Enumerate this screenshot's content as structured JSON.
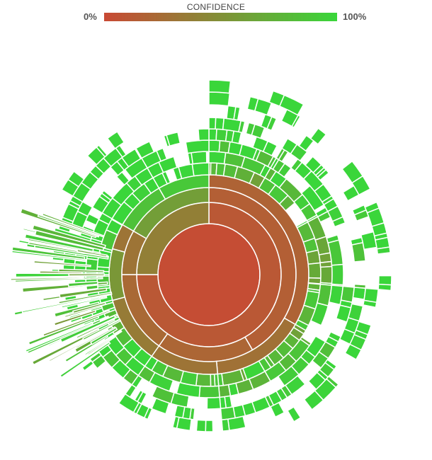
{
  "legend": {
    "title": "CONFIDENCE",
    "min_label": "0%",
    "max_label": "100%",
    "low_color": "#c84a34",
    "high_color": "#3ad63a"
  },
  "chart_data": {
    "type": "sunburst",
    "color_encoding": "confidence (0–100%), red = 0%, green = 100%",
    "rings": [
      {
        "depth": 1,
        "segments": [
          {
            "start_deg": 0,
            "end_deg": 360,
            "confidence": 0.02
          }
        ]
      },
      {
        "depth": 2,
        "segments": [
          {
            "start_deg": 0,
            "end_deg": 270,
            "confidence": 0.1
          },
          {
            "start_deg": 270,
            "end_deg": 360,
            "confidence": 0.38
          }
        ]
      },
      {
        "depth": 3,
        "segments": [
          {
            "start_deg": 0,
            "end_deg": 150,
            "confidence": 0.15
          },
          {
            "start_deg": 150,
            "end_deg": 215,
            "confidence": 0.2
          },
          {
            "start_deg": 215,
            "end_deg": 270,
            "confidence": 0.22
          },
          {
            "start_deg": 270,
            "end_deg": 300,
            "confidence": 0.3
          },
          {
            "start_deg": 300,
            "end_deg": 360,
            "confidence": 0.6
          }
        ]
      },
      {
        "depth": 4,
        "segments": [
          {
            "start_deg": 0,
            "end_deg": 120,
            "confidence": 0.18
          },
          {
            "start_deg": 120,
            "end_deg": 175,
            "confidence": 0.28
          },
          {
            "start_deg": 175,
            "end_deg": 215,
            "confidence": 0.3
          },
          {
            "start_deg": 215,
            "end_deg": 255,
            "confidence": 0.35
          },
          {
            "start_deg": 255,
            "end_deg": 285,
            "confidence": 0.55
          },
          {
            "start_deg": 285,
            "end_deg": 300,
            "confidence": 0.3
          },
          {
            "start_deg": 300,
            "end_deg": 330,
            "confidence": 0.85
          },
          {
            "start_deg": 330,
            "end_deg": 360,
            "confidence": 0.9
          }
        ]
      }
    ],
    "outer_fragments": "many thin outer segments (depths 5–12), mostly high confidence"
  }
}
